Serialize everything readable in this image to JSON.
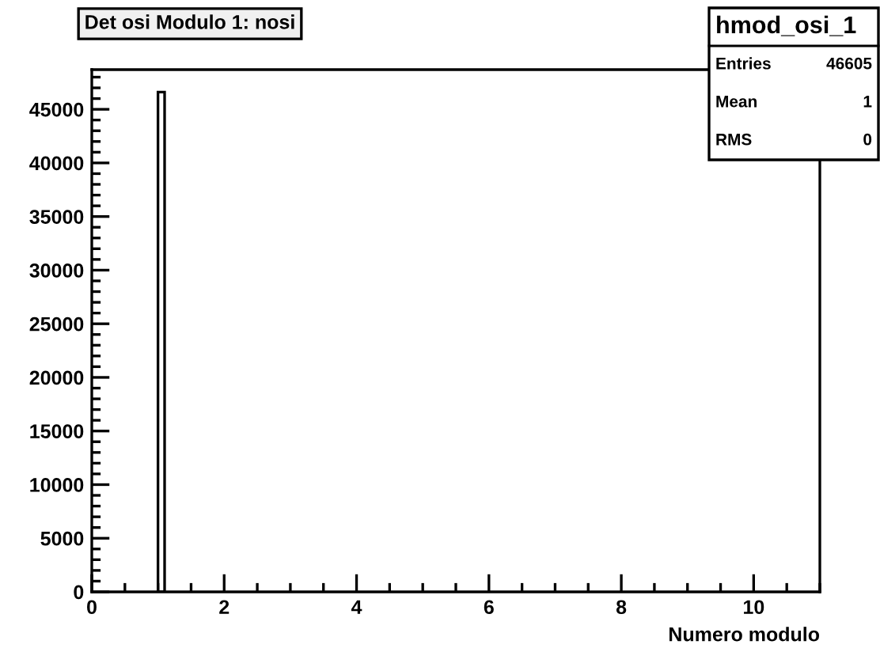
{
  "chart_data": {
    "type": "histogram",
    "title": "Det osi Modulo 1: nosi",
    "xlabel": "Numero modulo",
    "bins": [
      1.0,
      1.1
    ],
    "values": [
      46605
    ],
    "color": "#000000",
    "xlim": [
      0,
      11
    ],
    "xticks": [
      0,
      2,
      4,
      6,
      8,
      10
    ],
    "ylim": [
      0,
      48700
    ],
    "yticks": [
      0,
      5000,
      10000,
      15000,
      20000,
      25000,
      30000,
      35000,
      40000,
      45000
    ],
    "grid": false,
    "annotations": [
      "hmod_osi_1",
      "Entries 46605",
      "Mean 1",
      "RMS 0"
    ]
  }
}
